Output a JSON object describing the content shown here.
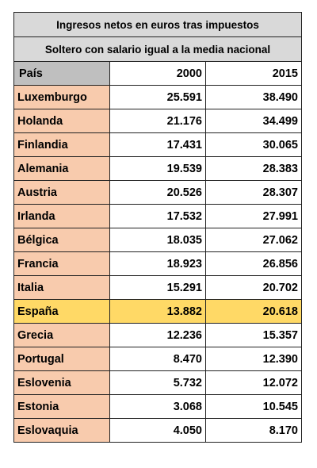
{
  "chart_data": {
    "type": "table",
    "title": "Ingresos netos en euros tras impuestos",
    "subtitle": "Soltero con salario igual a la media nacional",
    "columns": [
      "País",
      "2000",
      "2015"
    ],
    "rows": [
      {
        "country": "Luxemburgo",
        "y2000": "25.591",
        "y2015": "38.490"
      },
      {
        "country": "Holanda",
        "y2000": "21.176",
        "y2015": "34.499"
      },
      {
        "country": "Finlandia",
        "y2000": "17.431",
        "y2015": "30.065"
      },
      {
        "country": "Alemania",
        "y2000": "19.539",
        "y2015": "28.383"
      },
      {
        "country": "Austria",
        "y2000": "20.526",
        "y2015": "28.307"
      },
      {
        "country": "Irlanda",
        "y2000": "17.532",
        "y2015": "27.991"
      },
      {
        "country": "Bélgica",
        "y2000": "18.035",
        "y2015": "27.062"
      },
      {
        "country": "Francia",
        "y2000": "18.923",
        "y2015": "26.856"
      },
      {
        "country": "Italia",
        "y2000": "15.291",
        "y2015": "20.702"
      },
      {
        "country": "España",
        "y2000": "13.882",
        "y2015": "20.618",
        "highlight": true
      },
      {
        "country": "Grecia",
        "y2000": "12.236",
        "y2015": "15.357"
      },
      {
        "country": "Portugal",
        "y2000": "8.470",
        "y2015": "12.390"
      },
      {
        "country": "Eslovenia",
        "y2000": "5.732",
        "y2015": "12.072"
      },
      {
        "country": "Estonia",
        "y2000": "3.068",
        "y2015": "10.545"
      },
      {
        "country": "Eslovaquia",
        "y2000": "4.050",
        "y2015": "8.170"
      }
    ],
    "colors": {
      "title_bg": "#d9d9d9",
      "header_bg": "#bfbfbf",
      "country_bg": "#f8cbad",
      "highlight_bg": "#ffd966"
    }
  }
}
